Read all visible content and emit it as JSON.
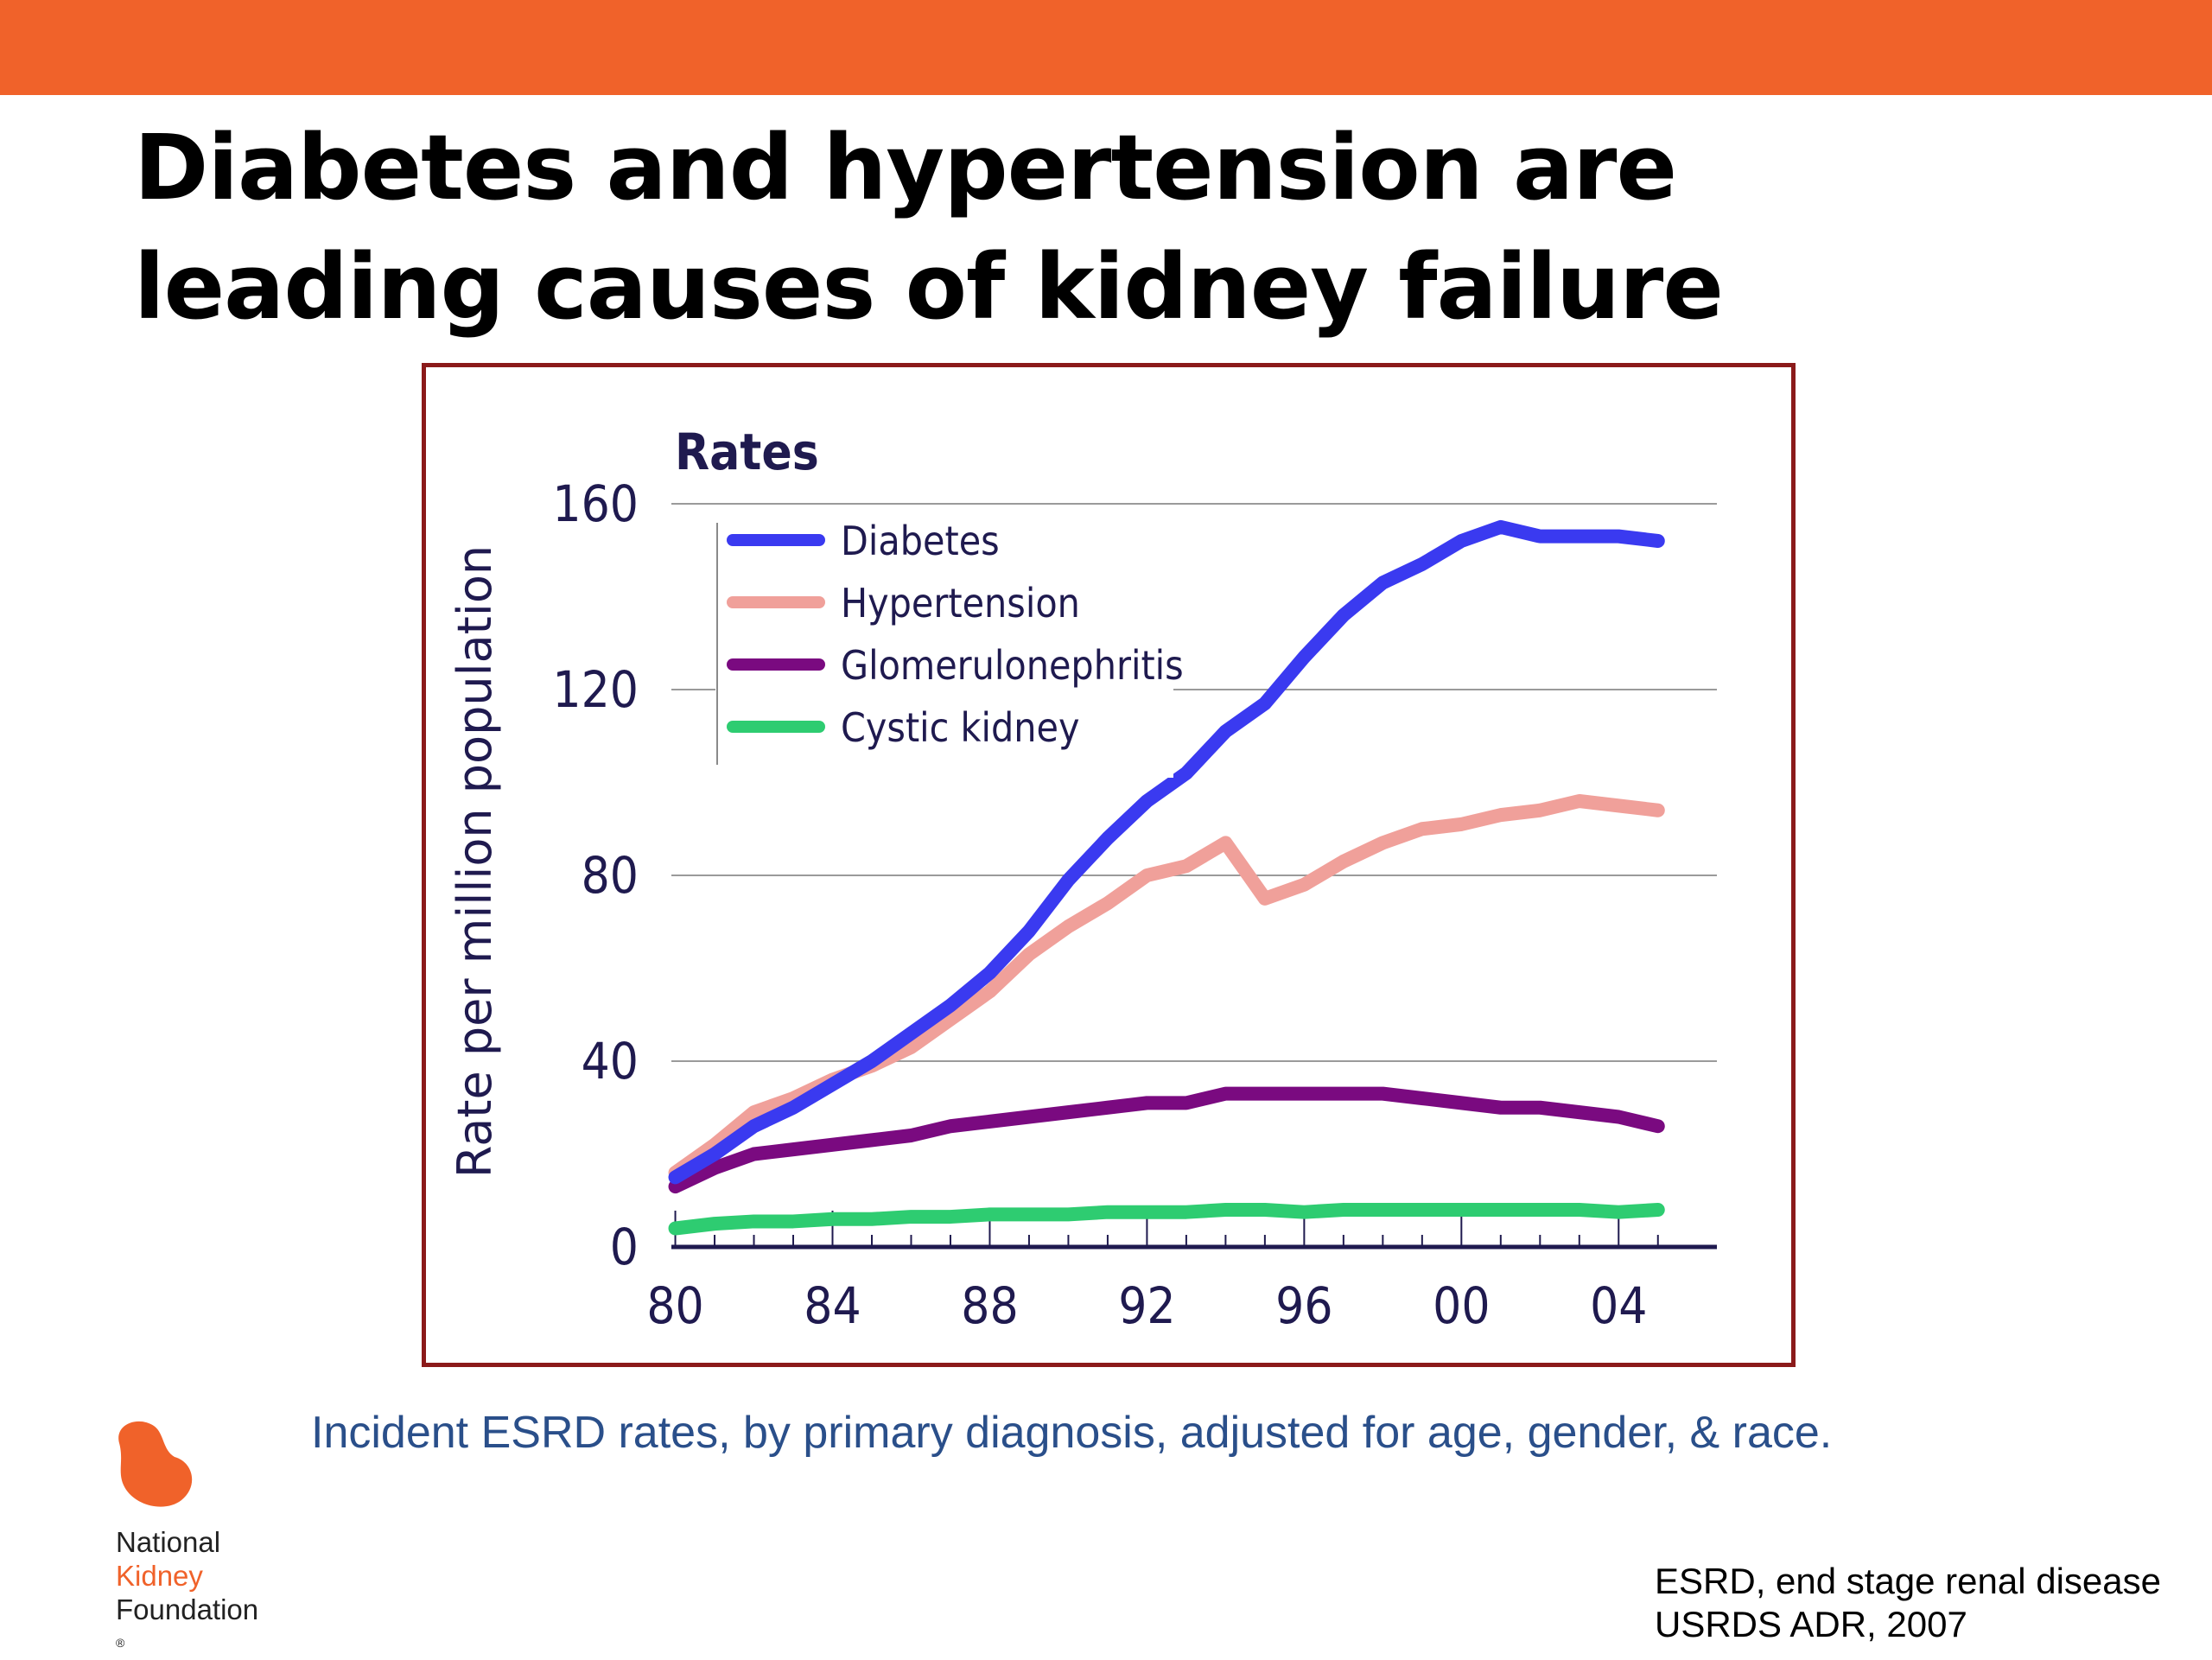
{
  "slide": {
    "title_line1": "Diabetes and hypertension are",
    "title_line2": "leading causes of kidney failure",
    "caption": "Incident ESRD rates, by primary diagnosis, adjusted for age, gender, & race.",
    "footnote_line1": "ESRD, end stage renal disease",
    "footnote_line2": "USRDS ADR, 2007",
    "accent_color": "#f0622a",
    "frame_color": "#8b1a1a"
  },
  "logo": {
    "line1": "National",
    "line2": "Kidney",
    "line3": "Foundation",
    "mark": "®",
    "icon": "kidney-bean-icon"
  },
  "chart_data": {
    "type": "line",
    "title": "Rates",
    "xlabel": "",
    "ylabel": "Rate per million population",
    "x": [
      1980,
      1981,
      1982,
      1983,
      1984,
      1985,
      1986,
      1987,
      1988,
      1989,
      1990,
      1991,
      1992,
      1993,
      1994,
      1995,
      1996,
      1997,
      1998,
      1999,
      2000,
      2001,
      2002,
      2003,
      2004,
      2005
    ],
    "xticks": [
      1980,
      1984,
      1988,
      1992,
      1996,
      2000,
      2004
    ],
    "xtick_labels": [
      "80",
      "84",
      "88",
      "92",
      "96",
      "00",
      "04"
    ],
    "xlim": [
      1979.9,
      2006.5
    ],
    "ylim": [
      0,
      160
    ],
    "yticks": [
      0,
      40,
      80,
      120,
      160
    ],
    "grid": "horizontal",
    "legend_position": "top-left",
    "series": [
      {
        "name": "Diabetes",
        "color": "#3a3af0",
        "values": [
          15,
          20,
          26,
          30,
          35,
          40,
          46,
          52,
          59,
          68,
          79,
          88,
          96,
          102,
          111,
          117,
          127,
          136,
          143,
          147,
          152,
          155,
          153,
          153,
          153,
          152
        ]
      },
      {
        "name": "Hypertension",
        "color": "#f0a09a",
        "values": [
          16,
          22,
          29,
          32,
          36,
          39,
          43,
          49,
          55,
          63,
          69,
          74,
          80,
          82,
          87,
          75,
          78,
          83,
          87,
          90,
          91,
          93,
          94,
          96,
          95,
          94
        ]
      },
      {
        "name": "Glomerulonephritis",
        "color": "#7a0a80",
        "values": [
          13,
          17,
          20,
          21,
          22,
          23,
          24,
          26,
          27,
          28,
          29,
          30,
          31,
          31,
          33,
          33,
          33,
          33,
          33,
          32,
          31,
          30,
          30,
          29,
          28,
          26
        ]
      },
      {
        "name": "Cystic kidney",
        "color": "#2ecc71",
        "values": [
          4,
          5,
          5.5,
          5.5,
          6,
          6,
          6.5,
          6.5,
          7,
          7,
          7,
          7.5,
          7.5,
          7.5,
          8,
          8,
          7.5,
          8,
          8,
          8,
          8,
          8,
          8,
          8,
          7.5,
          8
        ]
      }
    ]
  }
}
